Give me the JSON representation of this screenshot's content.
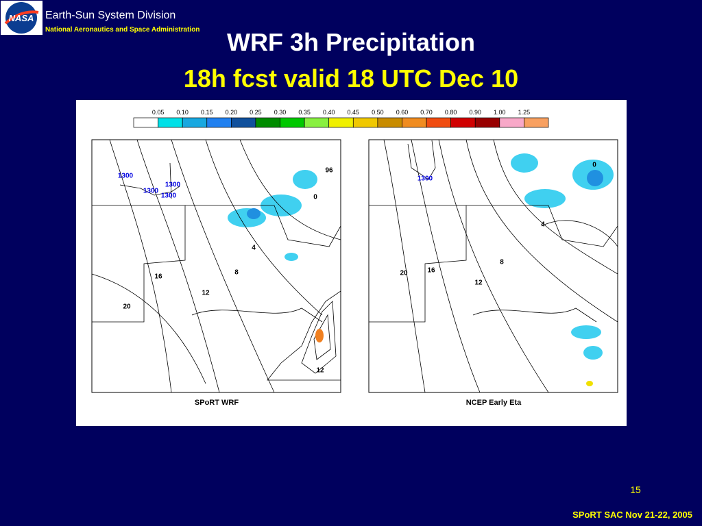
{
  "header": {
    "logo_text": "NASA",
    "division": "Earth-Sun System Division",
    "agency": "National Aeronautics and Space Administration"
  },
  "title": "WRF 3h Precipitation",
  "subtitle": "18h fcst valid 18 UTC Dec 10",
  "legend": {
    "labels": [
      "0.05",
      "0.10",
      "0.15",
      "0.20",
      "0.25",
      "0.30",
      "0.35",
      "0.40",
      "0.45",
      "0.50",
      "0.60",
      "0.70",
      "0.80",
      "0.90",
      "1.00",
      "1.25"
    ],
    "colors": [
      "#ffffff",
      "#00e0e8",
      "#18a8e0",
      "#2080f0",
      "#10509c",
      "#008c00",
      "#00c800",
      "#88f040",
      "#f0f000",
      "#f0c800",
      "#c88c00",
      "#f08c20",
      "#f04c10",
      "#d00000",
      "#980000",
      "#f8a8c8",
      "#f8a060"
    ]
  },
  "panels": [
    {
      "caption": "SPoRT WRF",
      "contour_labels": [
        "1300",
        "1300",
        "1300",
        "1300",
        "96",
        "0",
        "4",
        "8",
        "12",
        "16",
        "20",
        "12"
      ]
    },
    {
      "caption": "NCEP Early Eta",
      "contour_labels": [
        "1300",
        "0",
        "4",
        "8",
        "12",
        "16",
        "20"
      ]
    }
  ],
  "page_number": "15",
  "footer": "SPoRT SAC Nov 21-22, 2005"
}
